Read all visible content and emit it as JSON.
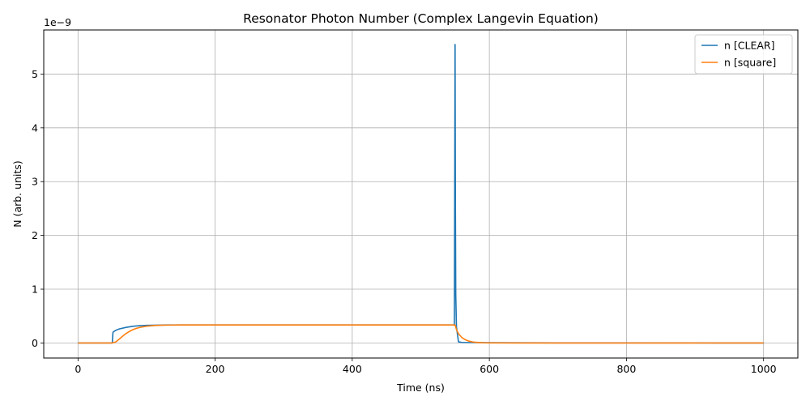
{
  "chart_data": {
    "type": "line",
    "title": "Resonator Photon Number (Complex Langevin Equation)",
    "xlabel": "Time (ns)",
    "ylabel": "N (arb. units)",
    "y_scale_label": "1e−9",
    "xlim": [
      -50,
      1050
    ],
    "ylim": [
      -0.28,
      5.82
    ],
    "x_ticks": [
      0,
      200,
      400,
      600,
      800,
      1000
    ],
    "x_tick_labels": [
      "0",
      "200",
      "400",
      "600",
      "800",
      "1000"
    ],
    "y_ticks": [
      0,
      1,
      2,
      3,
      4,
      5
    ],
    "y_tick_labels": [
      "0",
      "1",
      "2",
      "3",
      "4",
      "5"
    ],
    "grid": true,
    "legend_position": "top-right",
    "series": [
      {
        "name": "n [CLEAR]",
        "color": "#1f77b4",
        "x": [
          0,
          50,
          51,
          55,
          60,
          70,
          80,
          90,
          100,
          115,
          130,
          150,
          200,
          300,
          400,
          500,
          549,
          550,
          550.5,
          551,
          552,
          555,
          560,
          600,
          700,
          800,
          900,
          1000
        ],
        "y": [
          0,
          0,
          0.2,
          0.235,
          0.26,
          0.29,
          0.31,
          0.322,
          0.328,
          0.332,
          0.334,
          0.335,
          0.335,
          0.335,
          0.335,
          0.335,
          0.335,
          5.55,
          2.5,
          0.9,
          0.3,
          0.02,
          0.01,
          0.005,
          0.002,
          0.001,
          0.0005,
          0
        ]
      },
      {
        "name": "n [square]",
        "color": "#ff7f0e",
        "x": [
          0,
          50,
          55,
          60,
          65,
          70,
          75,
          80,
          85,
          90,
          100,
          110,
          120,
          130,
          150,
          200,
          300,
          400,
          500,
          550,
          552,
          555,
          560,
          565,
          570,
          575,
          580,
          590,
          600,
          650,
          700,
          800,
          900,
          1000
        ],
        "y": [
          0,
          0,
          0.02,
          0.07,
          0.125,
          0.175,
          0.215,
          0.247,
          0.271,
          0.289,
          0.311,
          0.323,
          0.329,
          0.332,
          0.335,
          0.335,
          0.335,
          0.335,
          0.335,
          0.335,
          0.25,
          0.17,
          0.1,
          0.06,
          0.035,
          0.02,
          0.012,
          0.004,
          0.001,
          0,
          0,
          0,
          0,
          0
        ]
      }
    ]
  }
}
